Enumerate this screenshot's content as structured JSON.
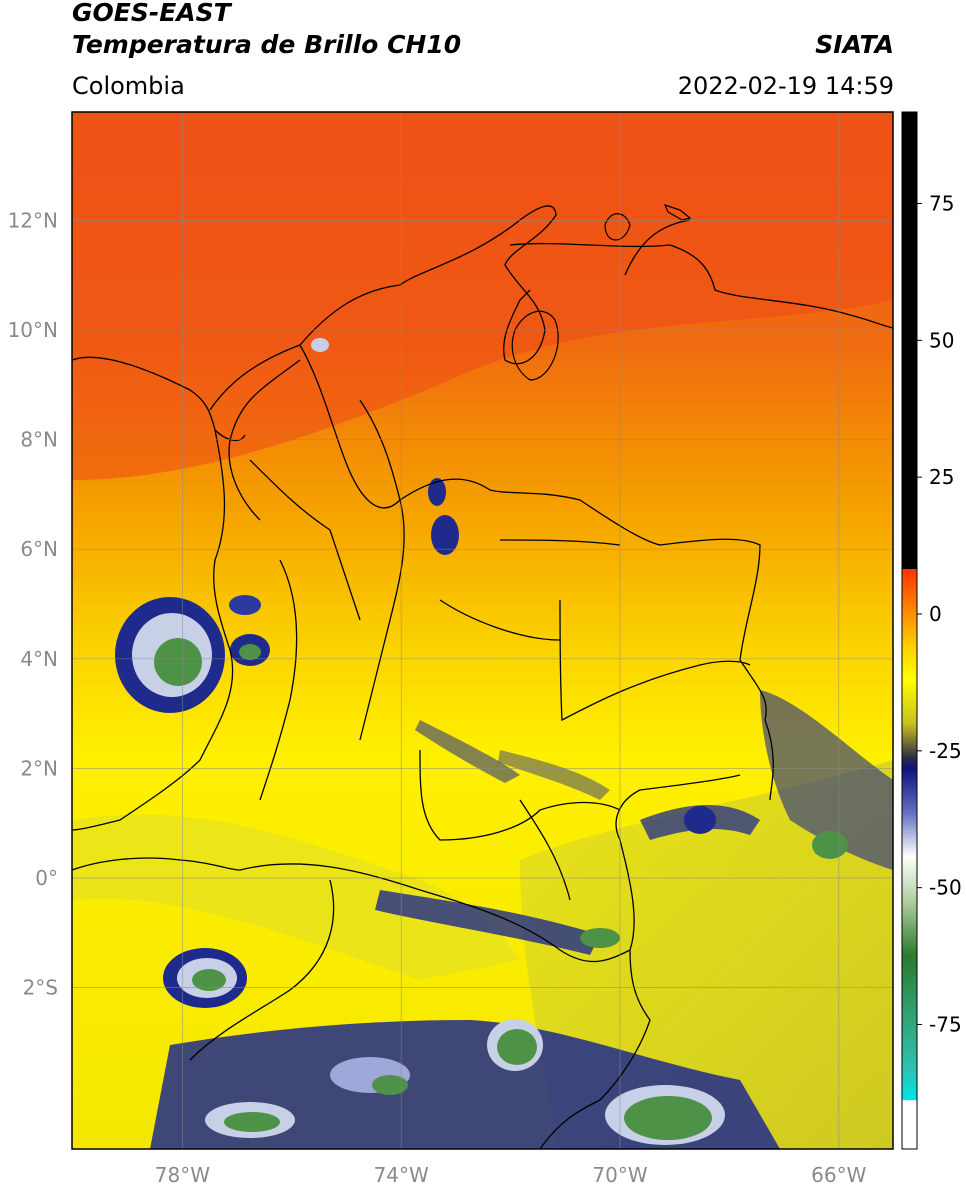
{
  "header": {
    "satellite": "GOES-EAST",
    "product": "Temperatura de Brillo CH10",
    "region": "Colombia",
    "organization": "SIATA",
    "datetime": "2022-02-19 14:59"
  },
  "map": {
    "lon_range": [
      -80,
      -65
    ],
    "lat_range": [
      -5,
      14
    ],
    "lat_ticks": [
      {
        "value": 12,
        "label": "12°N"
      },
      {
        "value": 10,
        "label": "10°N"
      },
      {
        "value": 8,
        "label": "8°N"
      },
      {
        "value": 6,
        "label": "6°N"
      },
      {
        "value": 4,
        "label": "4°N"
      },
      {
        "value": 2,
        "label": "2°N"
      },
      {
        "value": 0,
        "label": "0°"
      },
      {
        "value": -2,
        "label": "2°S"
      }
    ],
    "lon_ticks": [
      {
        "value": -78,
        "label": "78°W"
      },
      {
        "value": -74,
        "label": "74°W"
      },
      {
        "value": -70,
        "label": "70°W"
      },
      {
        "value": -66,
        "label": "66°W"
      }
    ],
    "grid": true,
    "colors": {
      "warm": "#e8431a",
      "mid": "#f5a400",
      "cool": "#ffef00",
      "olive": "#d4d21c",
      "cold": "#1e2a8c",
      "coldest": "#3a8a3a"
    }
  },
  "colorbar": {
    "range": [
      -100,
      90
    ],
    "ticks": [
      {
        "value": 75,
        "label": "75"
      },
      {
        "value": 50,
        "label": "50"
      },
      {
        "value": 25,
        "label": "25"
      },
      {
        "value": 0,
        "label": "0"
      },
      {
        "value": -25,
        "label": "-25"
      },
      {
        "value": -50,
        "label": "-50"
      },
      {
        "value": -75,
        "label": "-75"
      }
    ]
  }
}
